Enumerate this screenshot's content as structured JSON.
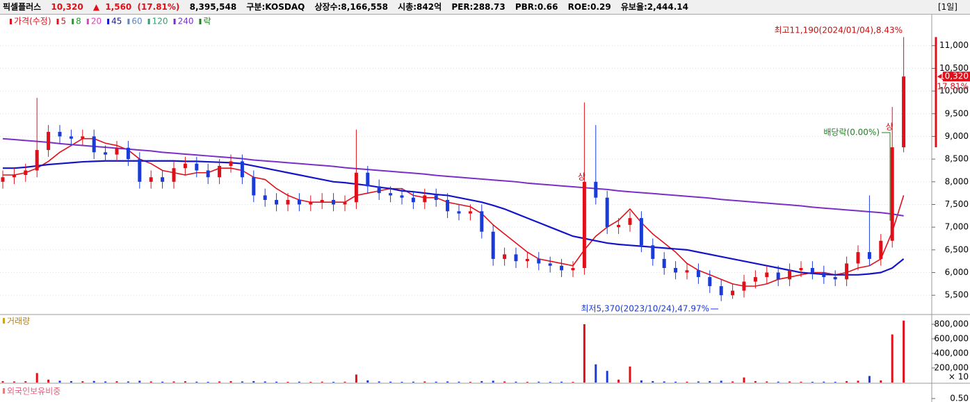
{
  "header": {
    "name": "픽셀플러스",
    "price": "10,320",
    "arrow": "▲",
    "change": "1,560",
    "change_pct": "(17.81%)",
    "volume": "8,395,548",
    "market": "구분:KOSDAQ",
    "shares": "상장수:8,166,558",
    "cap": "시총:842억",
    "per": "PER:288.73",
    "pbr": "PBR:0.66",
    "roe": "ROE:0.29",
    "reserve": "유보율:2,444.14",
    "period": "[1일]"
  },
  "legend": [
    {
      "name": "가격(수정)",
      "color": "#e0101a"
    },
    {
      "name": "5",
      "color": "#e0101a"
    },
    {
      "name": "8",
      "color": "#20a020"
    },
    {
      "name": "20",
      "color": "#e040c0"
    },
    {
      "name": "45",
      "color": "#1414c8"
    },
    {
      "name": "60",
      "color": "#5a88c8"
    },
    {
      "name": "120",
      "color": "#30a070"
    },
    {
      "name": "240",
      "color": "#7a2fc8"
    },
    {
      "name": "락",
      "color": "#208020"
    }
  ],
  "chart_data": [
    {
      "type": "candlestick",
      "ylim": [
        5090,
        11700
      ],
      "yticks": [
        {
          "value": 5500,
          "label": "5,500"
        },
        {
          "value": 6000,
          "label": "6,000"
        },
        {
          "value": 6500,
          "label": "6,500"
        },
        {
          "value": 7000,
          "label": "7,000"
        },
        {
          "value": 7500,
          "label": "7,500"
        },
        {
          "value": 8000,
          "label": "8,000"
        },
        {
          "value": 8500,
          "label": "8,500"
        },
        {
          "value": 9000,
          "label": "9,000"
        },
        {
          "value": 9500,
          "label": "9,500"
        },
        {
          "value": 10000,
          "label": "10,000"
        },
        {
          "value": 10500,
          "label": "10,500"
        },
        {
          "value": 11000,
          "label": "11,000"
        }
      ],
      "up_color": "#e0101a",
      "down_color": "#1a3bd8",
      "open": [
        8000,
        8100,
        8150,
        8250,
        8700,
        9100,
        9000,
        8950,
        9000,
        8650,
        8600,
        8750,
        8500,
        8000,
        8100,
        8000,
        8300,
        8400,
        8250,
        8100,
        8350,
        8450,
        8100,
        7700,
        7600,
        7500,
        7600,
        7500,
        7550,
        7600,
        7500,
        7550,
        8200,
        7900,
        7750,
        7700,
        7650,
        7550,
        7700,
        7600,
        7350,
        7300,
        7350,
        6900,
        6300,
        6400,
        6250,
        6300,
        6200,
        6150,
        6050,
        6100,
        8000,
        7650,
        7000,
        7050,
        7200,
        6600,
        6300,
        6100,
        6000,
        6050,
        5900,
        5700,
        5500,
        5600,
        5800,
        5900,
        6000,
        5850,
        6050,
        6100,
        6000,
        5900,
        5850,
        6200,
        6450,
        6300,
        6700,
        8760
      ],
      "high": [
        8250,
        8300,
        8400,
        9850,
        9250,
        9250,
        9150,
        9150,
        9150,
        8800,
        8900,
        8900,
        8650,
        8250,
        8250,
        8450,
        8550,
        8550,
        8400,
        8500,
        8600,
        8600,
        8250,
        7850,
        7750,
        7750,
        7750,
        7700,
        7750,
        7750,
        7700,
        9150,
        8350,
        8050,
        7900,
        7850,
        7800,
        7850,
        7850,
        7750,
        7500,
        7500,
        7500,
        7050,
        6550,
        6550,
        6450,
        6450,
        6350,
        6300,
        6250,
        9750,
        9250,
        7800,
        7200,
        7350,
        7350,
        6750,
        6450,
        6250,
        6200,
        6200,
        6050,
        5850,
        5750,
        5950,
        6050,
        6150,
        6150,
        6200,
        6250,
        6250,
        6150,
        6050,
        6350,
        6600,
        7700,
        6850,
        9650,
        11190
      ],
      "low": [
        7850,
        7950,
        8000,
        8100,
        8550,
        8850,
        8800,
        8800,
        8500,
        8450,
        8450,
        8350,
        7850,
        7850,
        7850,
        7850,
        8150,
        8100,
        7950,
        7950,
        8200,
        7950,
        7550,
        7450,
        7350,
        7350,
        7350,
        7350,
        7400,
        7350,
        7350,
        7400,
        7750,
        7600,
        7550,
        7500,
        7400,
        7400,
        7450,
        7200,
        7150,
        7150,
        6750,
        6150,
        6150,
        6100,
        6100,
        6050,
        6000,
        5900,
        5900,
        5950,
        7500,
        6850,
        6850,
        6900,
        6450,
        6150,
        5950,
        5850,
        5850,
        5750,
        5550,
        5370,
        5420,
        5450,
        5650,
        5750,
        5700,
        5700,
        5900,
        5850,
        5750,
        5700,
        5700,
        6050,
        6150,
        6150,
        6550,
        8650
      ],
      "close": [
        8100,
        8150,
        8250,
        8700,
        9100,
        9000,
        8950,
        9000,
        8650,
        8600,
        8750,
        8500,
        8000,
        8100,
        8000,
        8300,
        8400,
        8250,
        8100,
        8350,
        8450,
        8100,
        7700,
        7600,
        7500,
        7600,
        7500,
        7550,
        7600,
        7500,
        7550,
        8200,
        7900,
        7750,
        7700,
        7650,
        7550,
        7700,
        7600,
        7350,
        7300,
        7350,
        6900,
        6300,
        6400,
        6250,
        6300,
        6200,
        6150,
        6050,
        6100,
        8000,
        7650,
        7000,
        7050,
        7200,
        6600,
        6300,
        6100,
        6000,
        6050,
        5900,
        5700,
        5500,
        5600,
        5800,
        5900,
        6000,
        5850,
        6050,
        6100,
        6000,
        5900,
        5850,
        6200,
        6450,
        6300,
        6700,
        8760,
        10320
      ],
      "series": [
        {
          "name": "5",
          "color": "#e0101a",
          "values": [
            8150,
            8150,
            8200,
            8300,
            8450,
            8650,
            8800,
            8950,
            8950,
            8850,
            8800,
            8700,
            8500,
            8400,
            8250,
            8200,
            8150,
            8200,
            8200,
            8300,
            8300,
            8250,
            8100,
            8050,
            7850,
            7700,
            7600,
            7550,
            7550,
            7550,
            7550,
            7700,
            7750,
            7800,
            7850,
            7850,
            7700,
            7650,
            7650,
            7550,
            7500,
            7450,
            7300,
            7050,
            6850,
            6650,
            6450,
            6300,
            6250,
            6200,
            6150,
            6500,
            6800,
            7000,
            7150,
            7400,
            7100,
            6850,
            6650,
            6450,
            6200,
            6050,
            5950,
            5850,
            5750,
            5700,
            5700,
            5750,
            5850,
            5900,
            5950,
            6000,
            6000,
            5950,
            6000,
            6100,
            6150,
            6300,
            6900,
            7700
          ]
        },
        {
          "name": "45",
          "color": "#1414c8",
          "values": [
            8300,
            8300,
            8320,
            8350,
            8380,
            8400,
            8420,
            8440,
            8450,
            8460,
            8460,
            8460,
            8460,
            8460,
            8460,
            8460,
            8450,
            8450,
            8440,
            8430,
            8420,
            8400,
            8350,
            8300,
            8250,
            8200,
            8150,
            8100,
            8050,
            8000,
            7980,
            7950,
            7920,
            7880,
            7850,
            7800,
            7780,
            7750,
            7720,
            7700,
            7650,
            7600,
            7550,
            7480,
            7400,
            7300,
            7200,
            7100,
            7000,
            6900,
            6800,
            6750,
            6700,
            6650,
            6620,
            6600,
            6580,
            6560,
            6540,
            6520,
            6500,
            6450,
            6400,
            6350,
            6300,
            6250,
            6200,
            6150,
            6100,
            6050,
            6000,
            5980,
            5960,
            5950,
            5950,
            5950,
            5970,
            6000,
            6100,
            6300
          ]
        },
        {
          "name": "240",
          "color": "#7a2fc8",
          "values": [
            8950,
            8930,
            8910,
            8890,
            8870,
            8840,
            8820,
            8800,
            8780,
            8760,
            8740,
            8720,
            8700,
            8680,
            8650,
            8630,
            8610,
            8590,
            8570,
            8550,
            8530,
            8510,
            8480,
            8460,
            8440,
            8420,
            8400,
            8380,
            8360,
            8340,
            8310,
            8290,
            8270,
            8250,
            8230,
            8210,
            8190,
            8170,
            8140,
            8120,
            8100,
            8080,
            8060,
            8040,
            8020,
            8000,
            7970,
            7950,
            7930,
            7910,
            7890,
            7870,
            7850,
            7830,
            7800,
            7780,
            7760,
            7740,
            7720,
            7700,
            7680,
            7660,
            7640,
            7610,
            7590,
            7570,
            7550,
            7530,
            7510,
            7490,
            7470,
            7440,
            7420,
            7400,
            7380,
            7360,
            7340,
            7320,
            7290,
            7250
          ]
        }
      ],
      "annotations": {
        "high": "최고11,190(2024/01/04),8.43%",
        "low": "최저5,370(2023/10/24),47.97%",
        "dividend": "배당락(0.00%)",
        "limit1": "상",
        "limit2": "상",
        "last": "10,320",
        "last_pct": "17.81%"
      }
    },
    {
      "type": "bar",
      "title": "거래량",
      "ylim": [
        0,
        914000
      ],
      "yticks": [
        {
          "value": 200000,
          "label": "200,000"
        },
        {
          "value": 400000,
          "label": "400,000"
        },
        {
          "value": 600000,
          "label": "600,000"
        },
        {
          "value": 800000,
          "label": "800,000"
        }
      ],
      "unit": "× 10",
      "values": [
        20000,
        15000,
        18000,
        130000,
        40000,
        25000,
        20000,
        18000,
        22000,
        15000,
        18000,
        15000,
        25000,
        15000,
        12000,
        15000,
        18000,
        12000,
        10000,
        15000,
        20000,
        15000,
        20000,
        15000,
        12000,
        10000,
        12000,
        10000,
        12000,
        10000,
        12000,
        110000,
        30000,
        15000,
        12000,
        10000,
        12000,
        15000,
        12000,
        15000,
        12000,
        10000,
        20000,
        25000,
        15000,
        12000,
        10000,
        12000,
        10000,
        12000,
        10000,
        800000,
        250000,
        160000,
        40000,
        220000,
        30000,
        20000,
        15000,
        12000,
        12000,
        15000,
        20000,
        25000,
        15000,
        70000,
        20000,
        15000,
        12000,
        15000,
        12000,
        10000,
        12000,
        10000,
        20000,
        25000,
        90000,
        30000,
        660000,
        850000
      ]
    },
    {
      "type": "line",
      "title": "외국인보유비중",
      "yticks": [
        {
          "value": 0.5,
          "label": "0.50"
        }
      ]
    }
  ]
}
